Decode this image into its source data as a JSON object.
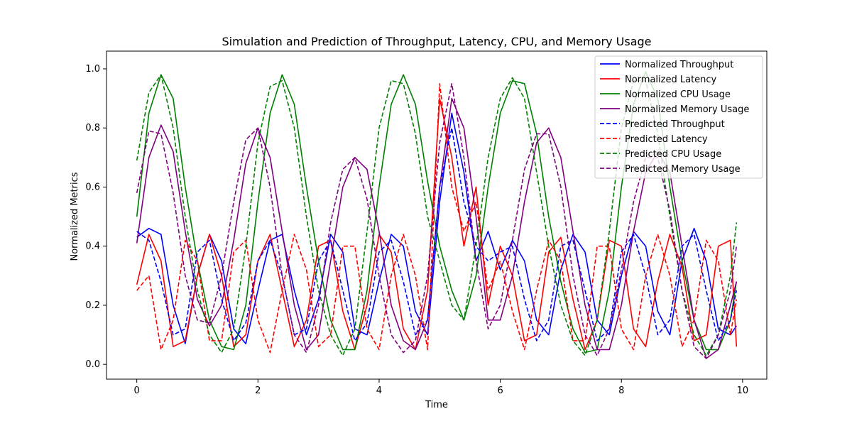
{
  "chart_data": {
    "type": "line",
    "title": "Simulation and Prediction of Throughput, Latency, CPU, and Memory Usage",
    "xlabel": "Time",
    "ylabel": "Normalized Metrics",
    "xlim": [
      -0.5,
      10.4
    ],
    "ylim": [
      -0.05,
      1.06
    ],
    "xticks": [
      0,
      2,
      4,
      6,
      8,
      10
    ],
    "yticks": [
      0.0,
      0.2,
      0.4,
      0.6,
      0.8,
      1.0
    ],
    "xtick_labels": [
      "0",
      "2",
      "4",
      "6",
      "8",
      "10"
    ],
    "ytick_labels": [
      "0.0",
      "0.2",
      "0.4",
      "0.6",
      "0.8",
      "1.0"
    ],
    "legend_position": "top-right",
    "grid": false,
    "series": [
      {
        "name": "Normalized Throughput",
        "color": "#0000ff",
        "dash": "solid",
        "x": [
          0.0,
          0.2,
          0.4,
          0.6,
          0.8,
          1.0,
          1.2,
          1.4,
          1.6,
          1.8,
          2.0,
          2.2,
          2.4,
          2.6,
          2.8,
          3.0,
          3.2,
          3.4,
          3.6,
          3.8,
          4.0,
          4.2,
          4.4,
          4.6,
          4.8,
          5.0,
          5.2,
          5.4,
          5.6,
          5.8,
          6.0,
          6.2,
          6.4,
          6.6,
          6.8,
          7.0,
          7.2,
          7.4,
          7.6,
          7.8,
          8.0,
          8.2,
          8.4,
          8.6,
          8.8,
          9.0,
          9.2,
          9.4,
          9.6,
          9.8,
          9.9
        ],
        "y": [
          0.43,
          0.46,
          0.44,
          0.2,
          0.07,
          0.3,
          0.44,
          0.35,
          0.12,
          0.07,
          0.25,
          0.42,
          0.44,
          0.25,
          0.1,
          0.22,
          0.44,
          0.38,
          0.12,
          0.1,
          0.28,
          0.44,
          0.4,
          0.18,
          0.1,
          0.55,
          0.85,
          0.65,
          0.35,
          0.45,
          0.32,
          0.42,
          0.35,
          0.15,
          0.1,
          0.32,
          0.44,
          0.38,
          0.15,
          0.1,
          0.3,
          0.45,
          0.4,
          0.18,
          0.1,
          0.35,
          0.46,
          0.35,
          0.12,
          0.1,
          0.13
        ]
      },
      {
        "name": "Normalized Latency",
        "color": "#ff0000",
        "dash": "solid",
        "x": [
          0.0,
          0.2,
          0.4,
          0.6,
          0.8,
          1.0,
          1.2,
          1.4,
          1.6,
          1.8,
          2.0,
          2.2,
          2.4,
          2.6,
          2.8,
          3.0,
          3.2,
          3.4,
          3.6,
          3.8,
          4.0,
          4.2,
          4.4,
          4.6,
          4.8,
          5.0,
          5.2,
          5.4,
          5.6,
          5.8,
          6.0,
          6.2,
          6.4,
          6.6,
          6.8,
          7.0,
          7.2,
          7.4,
          7.6,
          7.8,
          8.0,
          8.2,
          8.4,
          8.6,
          8.8,
          9.0,
          9.2,
          9.4,
          9.6,
          9.8,
          9.9
        ],
        "y": [
          0.27,
          0.44,
          0.35,
          0.06,
          0.08,
          0.3,
          0.44,
          0.3,
          0.06,
          0.1,
          0.35,
          0.44,
          0.25,
          0.06,
          0.15,
          0.4,
          0.42,
          0.18,
          0.05,
          0.2,
          0.44,
          0.38,
          0.12,
          0.05,
          0.25,
          0.9,
          0.7,
          0.4,
          0.6,
          0.2,
          0.4,
          0.3,
          0.08,
          0.1,
          0.38,
          0.43,
          0.22,
          0.05,
          0.15,
          0.42,
          0.4,
          0.12,
          0.06,
          0.28,
          0.44,
          0.33,
          0.08,
          0.1,
          0.4,
          0.42,
          0.06
        ]
      },
      {
        "name": "Normalized CPU Usage",
        "color": "#008000",
        "dash": "solid",
        "x": [
          0.0,
          0.2,
          0.4,
          0.6,
          0.8,
          1.0,
          1.2,
          1.4,
          1.6,
          1.8,
          2.0,
          2.2,
          2.4,
          2.6,
          2.8,
          3.0,
          3.2,
          3.4,
          3.6,
          3.8,
          4.0,
          4.2,
          4.4,
          4.6,
          4.8,
          5.0,
          5.2,
          5.4,
          5.6,
          5.8,
          6.0,
          6.2,
          6.4,
          6.6,
          6.8,
          7.0,
          7.2,
          7.4,
          7.6,
          7.8,
          8.0,
          8.2,
          8.4,
          8.6,
          8.8,
          9.0,
          9.2,
          9.4,
          9.6,
          9.8,
          9.9
        ],
        "y": [
          0.5,
          0.85,
          0.98,
          0.9,
          0.6,
          0.35,
          0.15,
          0.06,
          0.05,
          0.2,
          0.55,
          0.85,
          0.98,
          0.88,
          0.6,
          0.35,
          0.15,
          0.05,
          0.05,
          0.25,
          0.6,
          0.88,
          0.98,
          0.88,
          0.62,
          0.4,
          0.25,
          0.15,
          0.3,
          0.6,
          0.85,
          0.96,
          0.95,
          0.78,
          0.5,
          0.28,
          0.12,
          0.04,
          0.05,
          0.25,
          0.6,
          0.88,
          0.99,
          0.9,
          0.6,
          0.35,
          0.15,
          0.05,
          0.05,
          0.15,
          0.28
        ]
      },
      {
        "name": "Normalized Memory Usage",
        "color": "#800080",
        "dash": "solid",
        "x": [
          0.0,
          0.2,
          0.4,
          0.6,
          0.8,
          1.0,
          1.2,
          1.4,
          1.6,
          1.8,
          2.0,
          2.2,
          2.4,
          2.6,
          2.8,
          3.0,
          3.2,
          3.4,
          3.6,
          3.8,
          4.0,
          4.2,
          4.4,
          4.6,
          4.8,
          5.0,
          5.2,
          5.4,
          5.6,
          5.8,
          6.0,
          6.2,
          6.4,
          6.6,
          6.8,
          7.0,
          7.2,
          7.4,
          7.6,
          7.8,
          8.0,
          8.2,
          8.4,
          8.6,
          8.8,
          9.0,
          9.2,
          9.4,
          9.6,
          9.8,
          9.9
        ],
        "y": [
          0.41,
          0.7,
          0.81,
          0.72,
          0.45,
          0.22,
          0.13,
          0.2,
          0.42,
          0.68,
          0.8,
          0.7,
          0.45,
          0.2,
          0.05,
          0.1,
          0.35,
          0.6,
          0.7,
          0.66,
          0.45,
          0.2,
          0.08,
          0.05,
          0.15,
          0.6,
          0.9,
          0.8,
          0.5,
          0.15,
          0.15,
          0.3,
          0.55,
          0.75,
          0.8,
          0.7,
          0.45,
          0.2,
          0.05,
          0.05,
          0.2,
          0.45,
          0.65,
          0.72,
          0.65,
          0.4,
          0.15,
          0.02,
          0.05,
          0.2,
          0.28
        ]
      },
      {
        "name": "Predicted Throughput",
        "color": "#0000ff",
        "dash": "dashed",
        "x": [
          0.0,
          0.2,
          0.4,
          0.6,
          0.8,
          1.0,
          1.2,
          1.4,
          1.6,
          1.8,
          2.0,
          2.2,
          2.4,
          2.6,
          2.8,
          3.0,
          3.2,
          3.4,
          3.6,
          3.8,
          4.0,
          4.2,
          4.4,
          4.6,
          4.8,
          5.0,
          5.2,
          5.4,
          5.6,
          5.8,
          6.0,
          6.2,
          6.4,
          6.6,
          6.8,
          7.0,
          7.2,
          7.4,
          7.6,
          7.8,
          8.0,
          8.2,
          8.4,
          8.6,
          8.8,
          9.0,
          9.2,
          9.4,
          9.6,
          9.8,
          9.9
        ],
        "y": [
          0.45,
          0.42,
          0.28,
          0.1,
          0.12,
          0.38,
          0.42,
          0.22,
          0.08,
          0.14,
          0.35,
          0.42,
          0.3,
          0.1,
          0.12,
          0.35,
          0.42,
          0.25,
          0.08,
          0.14,
          0.38,
          0.42,
          0.28,
          0.1,
          0.15,
          0.6,
          0.8,
          0.55,
          0.4,
          0.35,
          0.38,
          0.4,
          0.22,
          0.08,
          0.15,
          0.4,
          0.42,
          0.25,
          0.08,
          0.12,
          0.38,
          0.44,
          0.3,
          0.1,
          0.15,
          0.4,
          0.44,
          0.25,
          0.08,
          0.15,
          0.25
        ]
      },
      {
        "name": "Predicted Latency",
        "color": "#ff0000",
        "dash": "dashed",
        "x": [
          0.0,
          0.2,
          0.4,
          0.6,
          0.8,
          1.0,
          1.2,
          1.4,
          1.6,
          1.8,
          2.0,
          2.2,
          2.4,
          2.6,
          2.8,
          3.0,
          3.2,
          3.4,
          3.6,
          3.8,
          4.0,
          4.2,
          4.4,
          4.6,
          4.8,
          5.0,
          5.2,
          5.4,
          5.6,
          5.8,
          6.0,
          6.2,
          6.4,
          6.6,
          6.8,
          7.0,
          7.2,
          7.4,
          7.6,
          7.8,
          8.0,
          8.2,
          8.4,
          8.6,
          8.8,
          9.0,
          9.2,
          9.4,
          9.6,
          9.8,
          9.9
        ],
        "y": [
          0.25,
          0.3,
          0.05,
          0.15,
          0.42,
          0.35,
          0.08,
          0.08,
          0.38,
          0.42,
          0.15,
          0.04,
          0.25,
          0.44,
          0.32,
          0.06,
          0.1,
          0.4,
          0.4,
          0.12,
          0.05,
          0.3,
          0.44,
          0.3,
          0.05,
          0.95,
          0.6,
          0.45,
          0.55,
          0.25,
          0.35,
          0.18,
          0.05,
          0.25,
          0.42,
          0.35,
          0.08,
          0.08,
          0.4,
          0.4,
          0.12,
          0.05,
          0.3,
          0.44,
          0.3,
          0.06,
          0.15,
          0.42,
          0.35,
          0.1,
          0.22
        ]
      },
      {
        "name": "Predicted CPU Usage",
        "color": "#008000",
        "dash": "dashed",
        "x": [
          0.0,
          0.2,
          0.4,
          0.6,
          0.8,
          1.0,
          1.2,
          1.4,
          1.6,
          1.8,
          2.0,
          2.2,
          2.4,
          2.6,
          2.8,
          3.0,
          3.2,
          3.4,
          3.6,
          3.8,
          4.0,
          4.2,
          4.4,
          4.6,
          4.8,
          5.0,
          5.2,
          5.4,
          5.6,
          5.8,
          6.0,
          6.2,
          6.4,
          6.6,
          6.8,
          7.0,
          7.2,
          7.4,
          7.6,
          7.8,
          8.0,
          8.2,
          8.4,
          8.6,
          8.8,
          9.0,
          9.2,
          9.4,
          9.6,
          9.8,
          9.9
        ],
        "y": [
          0.69,
          0.92,
          0.98,
          0.8,
          0.5,
          0.25,
          0.1,
          0.04,
          0.12,
          0.4,
          0.75,
          0.94,
          0.96,
          0.8,
          0.5,
          0.25,
          0.1,
          0.03,
          0.12,
          0.45,
          0.8,
          0.96,
          0.95,
          0.78,
          0.5,
          0.35,
          0.2,
          0.15,
          0.4,
          0.7,
          0.9,
          0.97,
          0.9,
          0.65,
          0.4,
          0.2,
          0.08,
          0.03,
          0.15,
          0.45,
          0.8,
          0.96,
          0.96,
          0.78,
          0.5,
          0.25,
          0.1,
          0.03,
          0.1,
          0.3,
          0.48
        ]
      },
      {
        "name": "Predicted Memory Usage",
        "color": "#800080",
        "dash": "dashed",
        "x": [
          0.0,
          0.2,
          0.4,
          0.6,
          0.8,
          1.0,
          1.2,
          1.4,
          1.6,
          1.8,
          2.0,
          2.2,
          2.4,
          2.6,
          2.8,
          3.0,
          3.2,
          3.4,
          3.6,
          3.8,
          4.0,
          4.2,
          4.4,
          4.6,
          4.8,
          5.0,
          5.2,
          5.4,
          5.6,
          5.8,
          6.0,
          6.2,
          6.4,
          6.6,
          6.8,
          7.0,
          7.2,
          7.4,
          7.6,
          7.8,
          8.0,
          8.2,
          8.4,
          8.6,
          8.8,
          9.0,
          9.2,
          9.4,
          9.6,
          9.8,
          9.9
        ],
        "y": [
          0.58,
          0.79,
          0.78,
          0.58,
          0.3,
          0.15,
          0.14,
          0.3,
          0.55,
          0.76,
          0.8,
          0.6,
          0.3,
          0.1,
          0.04,
          0.2,
          0.48,
          0.66,
          0.7,
          0.56,
          0.3,
          0.1,
          0.04,
          0.08,
          0.3,
          0.75,
          0.95,
          0.7,
          0.35,
          0.12,
          0.2,
          0.42,
          0.66,
          0.78,
          0.78,
          0.6,
          0.3,
          0.1,
          0.03,
          0.12,
          0.32,
          0.55,
          0.7,
          0.7,
          0.52,
          0.25,
          0.06,
          0.02,
          0.1,
          0.25,
          0.4
        ]
      }
    ]
  }
}
